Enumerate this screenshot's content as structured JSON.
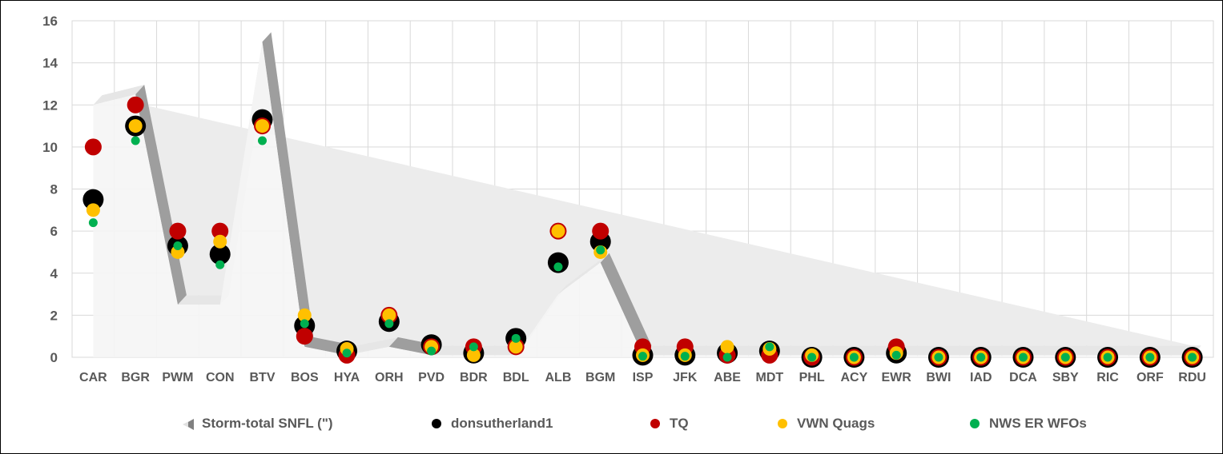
{
  "chart_data": {
    "type": "scatter",
    "categories": [
      "CAR",
      "BGR",
      "PWM",
      "CON",
      "BTV",
      "BOS",
      "HYA",
      "ORH",
      "PVD",
      "BDR",
      "BDL",
      "ALB",
      "BGM",
      "ISP",
      "JFK",
      "ABE",
      "MDT",
      "PHL",
      "ACY",
      "EWR",
      "BWI",
      "IAD",
      "DCA",
      "SBY",
      "RIC",
      "ORF",
      "RDU"
    ],
    "ylim": [
      0,
      16
    ],
    "yticks": [
      0,
      2,
      4,
      6,
      8,
      10,
      12,
      14,
      16
    ],
    "grid": true,
    "legend_position": "bottom",
    "area_series": {
      "name": "Storm-total SNFL (\")",
      "color": "#f2f2f2",
      "values": [
        12.0,
        12.5,
        2.5,
        2.5,
        15.0,
        0.5,
        0.1,
        0.5,
        0.1,
        0.1,
        0.1,
        3.0,
        4.5,
        0.1,
        0.1,
        0.1,
        0.1,
        0.1,
        0.1,
        0.1,
        0.1,
        0.1,
        0.1,
        0.1,
        0.1,
        0.1,
        0.1
      ]
    },
    "series": [
      {
        "name": "donsutherland1",
        "color": "#000000",
        "values": [
          7.5,
          11.0,
          5.3,
          4.9,
          11.3,
          1.5,
          0.3,
          1.7,
          0.6,
          0.2,
          0.9,
          4.5,
          5.5,
          0.1,
          0.1,
          0.2,
          0.3,
          0.0,
          0.0,
          0.2,
          0.0,
          0.0,
          0.0,
          0.0,
          0.0,
          0.0,
          0.0
        ]
      },
      {
        "name": "TQ",
        "color": "#c00000",
        "values": [
          10.0,
          12.0,
          6.0,
          6.0,
          11.0,
          1.0,
          0.1,
          2.0,
          0.5,
          0.5,
          0.5,
          6.0,
          6.0,
          0.5,
          0.5,
          0.1,
          0.1,
          0.0,
          0.0,
          0.5,
          0.0,
          0.0,
          0.0,
          0.0,
          0.0,
          0.0,
          0.0
        ]
      },
      {
        "name": "VWN Quags",
        "color": "#ffc000",
        "values": [
          7.0,
          11.0,
          5.0,
          5.5,
          11.0,
          2.0,
          0.4,
          2.0,
          0.5,
          0.1,
          0.5,
          6.0,
          5.0,
          0.1,
          0.1,
          0.5,
          0.4,
          0.1,
          0.0,
          0.2,
          0.0,
          0.0,
          0.0,
          0.0,
          0.0,
          0.0,
          0.0
        ]
      },
      {
        "name": "NWS ER WFOs",
        "color": "#00b050",
        "values": [
          6.4,
          10.3,
          5.3,
          4.4,
          10.3,
          1.6,
          0.2,
          1.6,
          0.3,
          0.5,
          0.9,
          4.3,
          5.1,
          0.05,
          0.05,
          0.0,
          0.5,
          0.0,
          0.0,
          0.1,
          0.0,
          0.0,
          0.0,
          0.0,
          0.0,
          0.0,
          0.0
        ]
      }
    ]
  }
}
